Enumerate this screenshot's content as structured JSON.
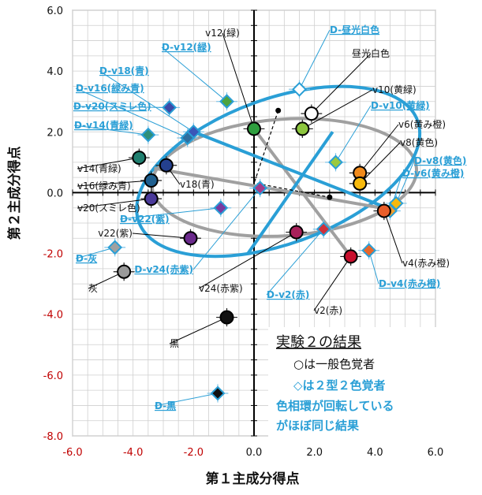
{
  "chart_data": {
    "type": "scatter",
    "xlabel": "第１主成分得点",
    "ylabel": "第２主成分得点",
    "xlim": [
      -6,
      6
    ],
    "ylim": [
      -8,
      6
    ],
    "xticks": [
      "-6.0",
      "-4.0",
      "-2.0",
      "0.0",
      "2.0",
      "4.0",
      "6.0"
    ],
    "yticks": [
      "6.0",
      "4.0",
      "2.0",
      "0.0",
      "-2.0",
      "-4.0",
      "-6.0",
      "-8.0"
    ],
    "grid": true,
    "series": [
      {
        "name": "一般色覚者",
        "marker": "circle",
        "points": [
          {
            "label": "昼光白色",
            "x": 1.9,
            "y": 2.6,
            "color": "#ffffff"
          },
          {
            "label": "v10(黄緑)",
            "x": 1.6,
            "y": 2.1,
            "color": "#8dc63f"
          },
          {
            "label": "v12(緑)",
            "x": 0.0,
            "y": 2.1,
            "color": "#2e9e3e"
          },
          {
            "label": "v6(黄み橙)",
            "x": 3.5,
            "y": 0.65,
            "color": "#f08a1c"
          },
          {
            "label": "v8(黄色)",
            "x": 3.5,
            "y": 0.3,
            "color": "#f7b90d"
          },
          {
            "label": "v4(赤み橙)",
            "x": 4.3,
            "y": -0.6,
            "color": "#e85e2a"
          },
          {
            "label": "v2(赤)",
            "x": 3.2,
            "y": -2.1,
            "color": "#c8102e"
          },
          {
            "label": "v24(赤紫)",
            "x": 1.4,
            "y": -1.3,
            "color": "#a8205a"
          },
          {
            "label": "v22(紫)",
            "x": -2.1,
            "y": -1.5,
            "color": "#6b2a8c"
          },
          {
            "label": "v20(スミレ色)",
            "x": -3.4,
            "y": -0.2,
            "color": "#4a3a9a"
          },
          {
            "label": "v18(青)",
            "x": -2.9,
            "y": 0.9,
            "color": "#24408e"
          },
          {
            "label": "v16(緑み青)",
            "x": -3.4,
            "y": 0.4,
            "color": "#1f5f8f"
          },
          {
            "label": "v14(青緑)",
            "x": -3.8,
            "y": 1.15,
            "color": "#1f7f6f"
          },
          {
            "label": "灰",
            "x": -4.3,
            "y": -2.6,
            "color": "#9a9a9a"
          },
          {
            "label": "黒",
            "x": -0.9,
            "y": -4.1,
            "color": "#111111"
          }
        ]
      },
      {
        "name": "２型２色覚者",
        "marker": "diamond",
        "points": [
          {
            "label": "D-昼光白色",
            "x": 1.5,
            "y": 3.4,
            "color": "#ffffff"
          },
          {
            "label": "D-v10(黄緑)",
            "x": 2.7,
            "y": 1.0,
            "color": "#9bc93f"
          },
          {
            "label": "D-v12(緑)",
            "x": -0.9,
            "y": 3.0,
            "color": "#4ea33e"
          },
          {
            "label": "D-v8(黄色)",
            "x": 4.7,
            "y": -0.35,
            "color": "#f7b90d"
          },
          {
            "label": "D-v6(黄み橙)",
            "x": 4.5,
            "y": -0.6,
            "color": "#f0a030"
          },
          {
            "label": "D-v4(赤み橙)",
            "x": 3.8,
            "y": -1.9,
            "color": "#e8662a"
          },
          {
            "label": "D-v2(赤)",
            "x": 2.3,
            "y": -1.2,
            "color": "#d0303a"
          },
          {
            "label": "D-v24(赤紫)",
            "x": 0.2,
            "y": 0.15,
            "color": "#a33a8a"
          },
          {
            "label": "D-v22(紫)",
            "x": -1.1,
            "y": -0.5,
            "color": "#7a3aa0"
          },
          {
            "label": "D-v20(スミレ色)",
            "x": -2.8,
            "y": 2.8,
            "color": "#3d4aa8"
          },
          {
            "label": "D-v18(青)",
            "x": -2.0,
            "y": 2.0,
            "color": "#3a56b8"
          },
          {
            "label": "D-v16(緑み青)",
            "x": -2.2,
            "y": 1.8,
            "color": "#2f6fa0"
          },
          {
            "label": "D-v14(青緑)",
            "x": -3.5,
            "y": 1.9,
            "color": "#2e8f7a"
          },
          {
            "label": "D-灰",
            "x": -4.6,
            "y": -1.8,
            "color": "#a0a0a0"
          },
          {
            "label": "D-黒",
            "x": -1.2,
            "y": -6.6,
            "color": "#111111"
          }
        ]
      }
    ],
    "annotations": {
      "title": "実験２の結果",
      "lines": [
        {
          "text": "○は一般色覚者",
          "color": "#111111"
        },
        {
          "text": "◇は２型２色覚者",
          "color": "#2a9fd6"
        },
        {
          "text": "色相環が回転している",
          "color": "#2a9fd6"
        },
        {
          "text": "がほぼ同じ結果",
          "color": "#2a9fd6"
        }
      ]
    },
    "colors": {
      "normal_ellipse": "#a0a0a0",
      "dichromat_ellipse": "#2a9fd6",
      "dichromat_label": "#2a9fd6",
      "negative_tick": "#c00000"
    }
  }
}
